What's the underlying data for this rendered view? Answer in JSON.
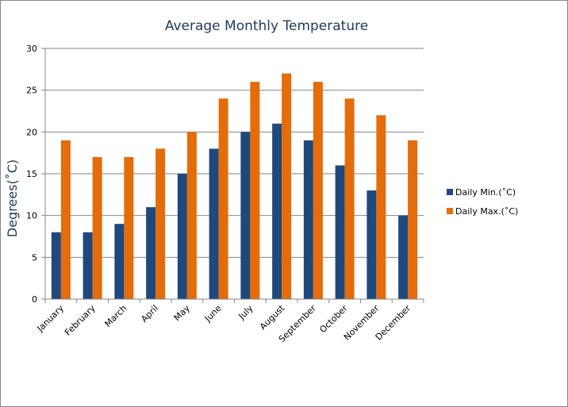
{
  "chart_data": {
    "type": "bar",
    "title": "Average Monthly Temperature",
    "xlabel": "",
    "ylabel": "Degrees(˚C)",
    "ylim": [
      0,
      30
    ],
    "yticks": [
      0,
      5,
      10,
      15,
      20,
      25,
      30
    ],
    "grid": true,
    "legend_position": "right",
    "categories": [
      "January",
      "February",
      "March",
      "April",
      "May",
      "June",
      "July",
      "August",
      "September",
      "October",
      "November",
      "December"
    ],
    "series": [
      {
        "name": "Daily Min.(˚C)",
        "color": "#1f497d",
        "values": [
          8,
          8,
          9,
          11,
          15,
          18,
          20,
          21,
          19,
          16,
          13,
          10
        ]
      },
      {
        "name": "Daily Max.(˚C)",
        "color": "#e46c0a",
        "values": [
          19,
          17,
          17,
          18,
          20,
          24,
          26,
          27,
          26,
          24,
          22,
          19
        ]
      }
    ]
  }
}
